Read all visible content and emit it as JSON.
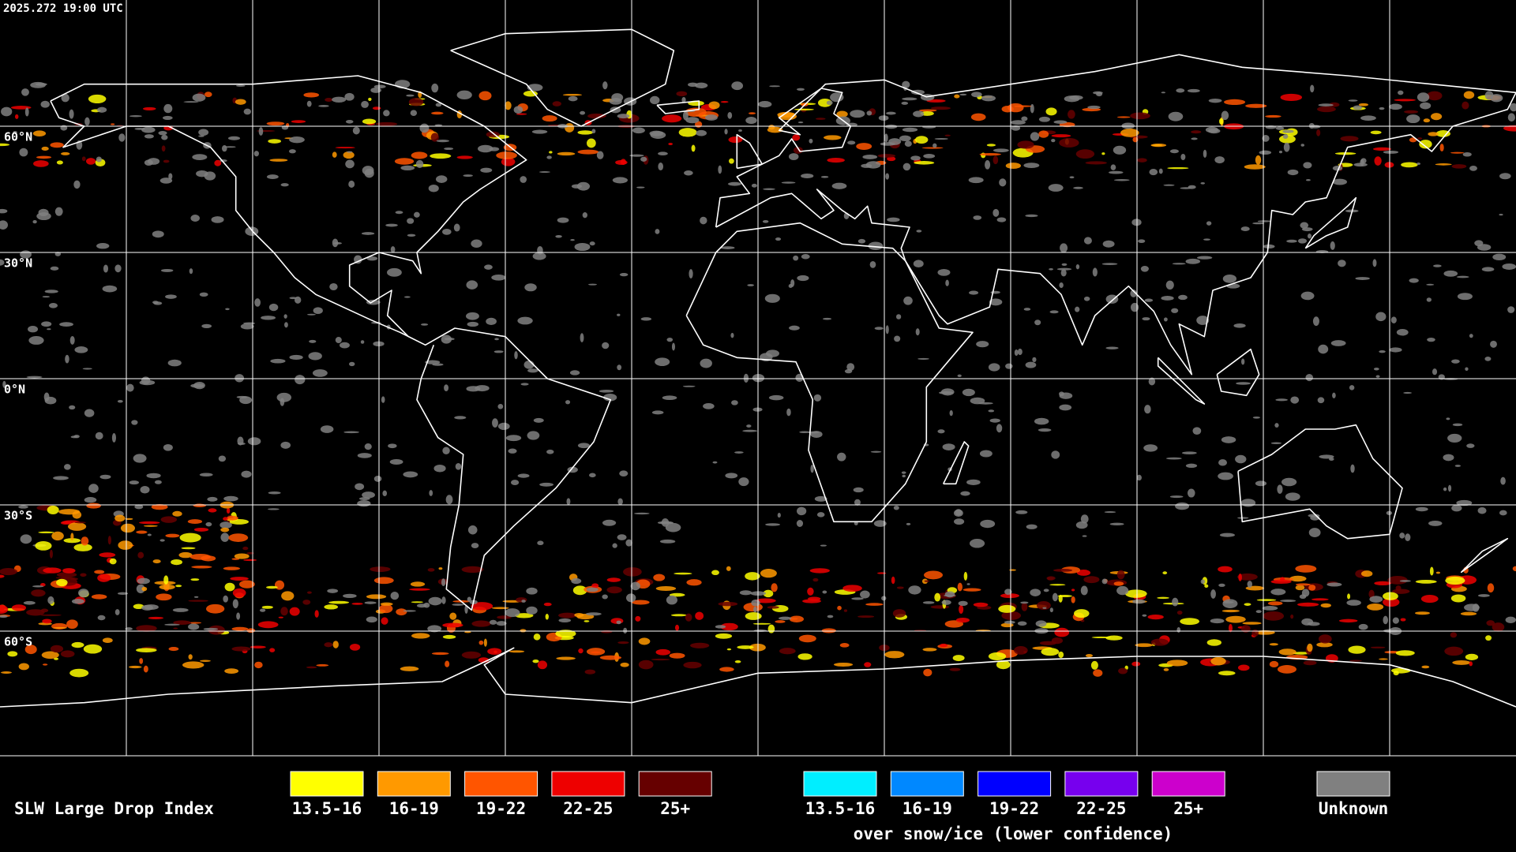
{
  "header": {
    "timestamp": "2025.272 19:00 UTC"
  },
  "map": {
    "latitude_labels": [
      "60°N",
      "30°N",
      "0°N",
      "30°S",
      "60°S"
    ]
  },
  "legend": {
    "title": "SLW Large Drop Index",
    "groups": [
      {
        "items": [
          {
            "label": "13.5-16",
            "color": "#ffff00"
          },
          {
            "label": "16-19",
            "color": "#ff9900"
          },
          {
            "label": "19-22",
            "color": "#ff5500"
          },
          {
            "label": "22-25",
            "color": "#ee0000"
          },
          {
            "label": "25+",
            "color": "#660000"
          }
        ]
      },
      {
        "items": [
          {
            "label": "13.5-16",
            "color": "#00eeff"
          },
          {
            "label": "16-19",
            "color": "#0088ff"
          },
          {
            "label": "19-22",
            "color": "#0000ff"
          },
          {
            "label": "22-25",
            "color": "#7700ee"
          },
          {
            "label": "25+",
            "color": "#cc00cc"
          }
        ],
        "caption": "over snow/ice (lower confidence)"
      }
    ],
    "unknown": {
      "label": "Unknown",
      "color": "#808080"
    }
  }
}
